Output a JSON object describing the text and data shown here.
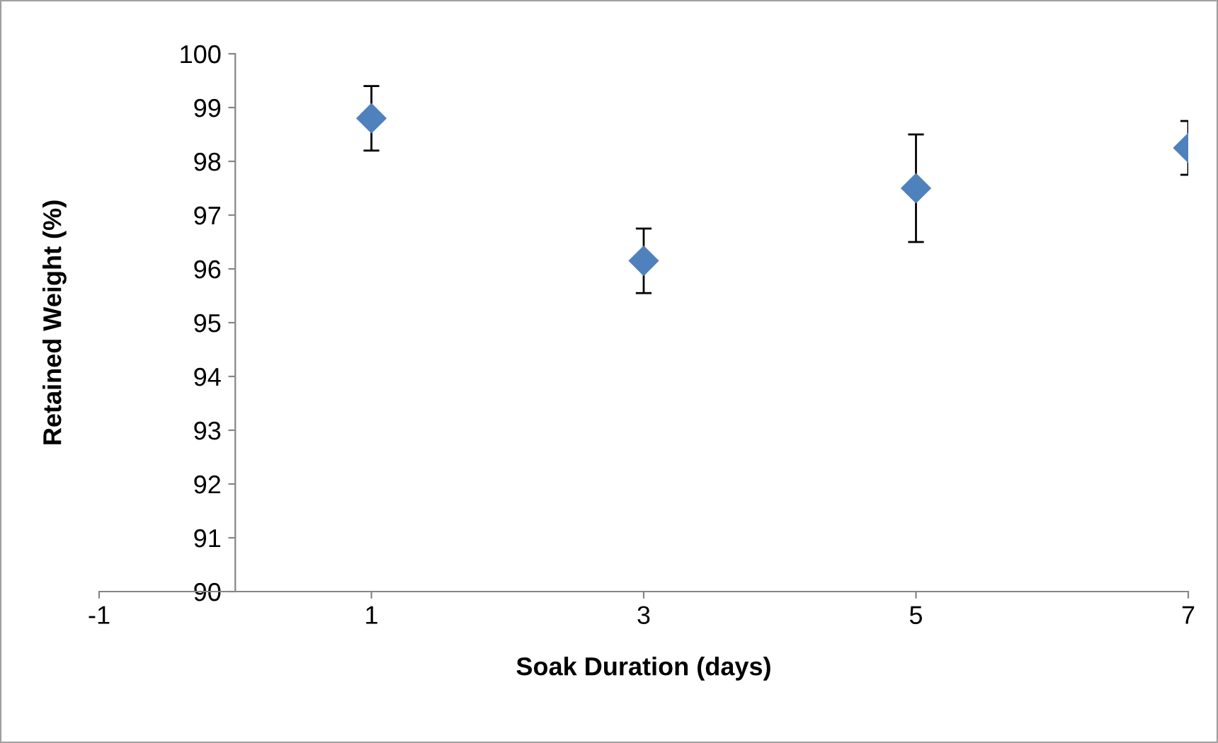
{
  "chart_data": {
    "type": "scatter",
    "xlabel": "Soak Duration (days)",
    "ylabel": "Retained Weight (%)",
    "x": [
      1,
      3,
      5,
      7
    ],
    "series": [
      {
        "color": "#4f81bd",
        "values": [
          98.8,
          96.15,
          97.5,
          98.25
        ],
        "errors": [
          0.6,
          0.6,
          1.0,
          0.5
        ]
      }
    ],
    "xlim": [
      -1,
      7
    ],
    "xticks": [
      -1,
      1,
      3,
      5,
      7
    ],
    "ylim": [
      90,
      100
    ],
    "yticks": [
      90,
      91,
      92,
      93,
      94,
      95,
      96,
      97,
      98,
      99,
      100
    ],
    "marker": "diamond",
    "grid": false,
    "legend": false
  }
}
